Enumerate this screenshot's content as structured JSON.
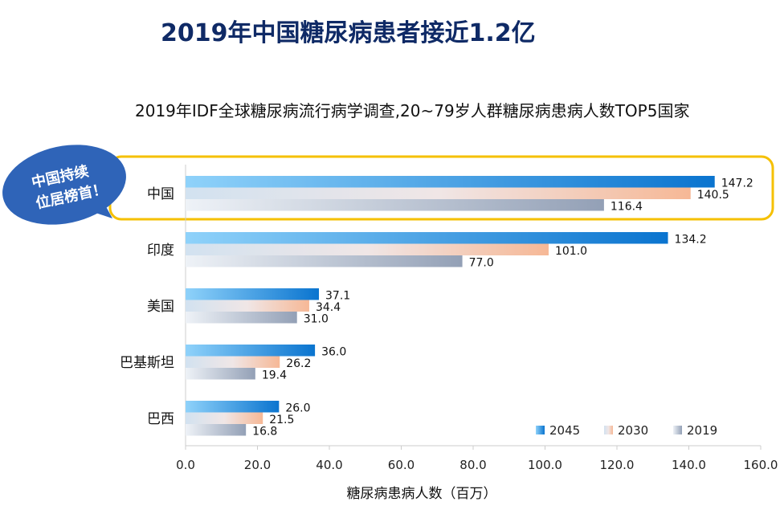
{
  "title": "2019年中国糖尿病患者接近1.2亿",
  "callout": {
    "line1": "中国持续",
    "line2": "位居榜首！",
    "color": "#2f64b8"
  },
  "highlight_color": "#f5c000",
  "chart_data": {
    "type": "bar",
    "orientation": "horizontal",
    "title": "2019年IDF全球糖尿病流行病学调查,20~79岁人群糖尿病患病人数TOP5国家",
    "xlabel": "糖尿病患病人数（百万）",
    "ylabel": "",
    "xlim": [
      0,
      160
    ],
    "xticks": [
      "0.0",
      "20.0",
      "40.0",
      "60.0",
      "80.0",
      "100.0",
      "120.0",
      "140.0",
      "160.0"
    ],
    "categories": [
      "中国",
      "印度",
      "美国",
      "巴基斯坦",
      "巴西"
    ],
    "series": [
      {
        "name": "2045",
        "values": [
          147.2,
          134.2,
          37.1,
          36.0,
          26.0
        ],
        "labels": [
          "147.2",
          "134.2",
          "37.1",
          "36.0",
          "26.0"
        ],
        "color": "#1580d8"
      },
      {
        "name": "2030",
        "values": [
          140.5,
          101.0,
          34.4,
          26.2,
          21.5
        ],
        "labels": [
          "140.5",
          "101.0",
          "34.4",
          "26.2",
          "21.5"
        ],
        "color": "#f4bc9c"
      },
      {
        "name": "2019",
        "values": [
          116.4,
          77.0,
          31.0,
          19.4,
          16.8
        ],
        "labels": [
          "116.4",
          "77.0",
          "31.0",
          "19.4",
          "16.8"
        ],
        "color": "#9aa6ba"
      }
    ],
    "legend_position": "bottom-right",
    "grid": false
  }
}
